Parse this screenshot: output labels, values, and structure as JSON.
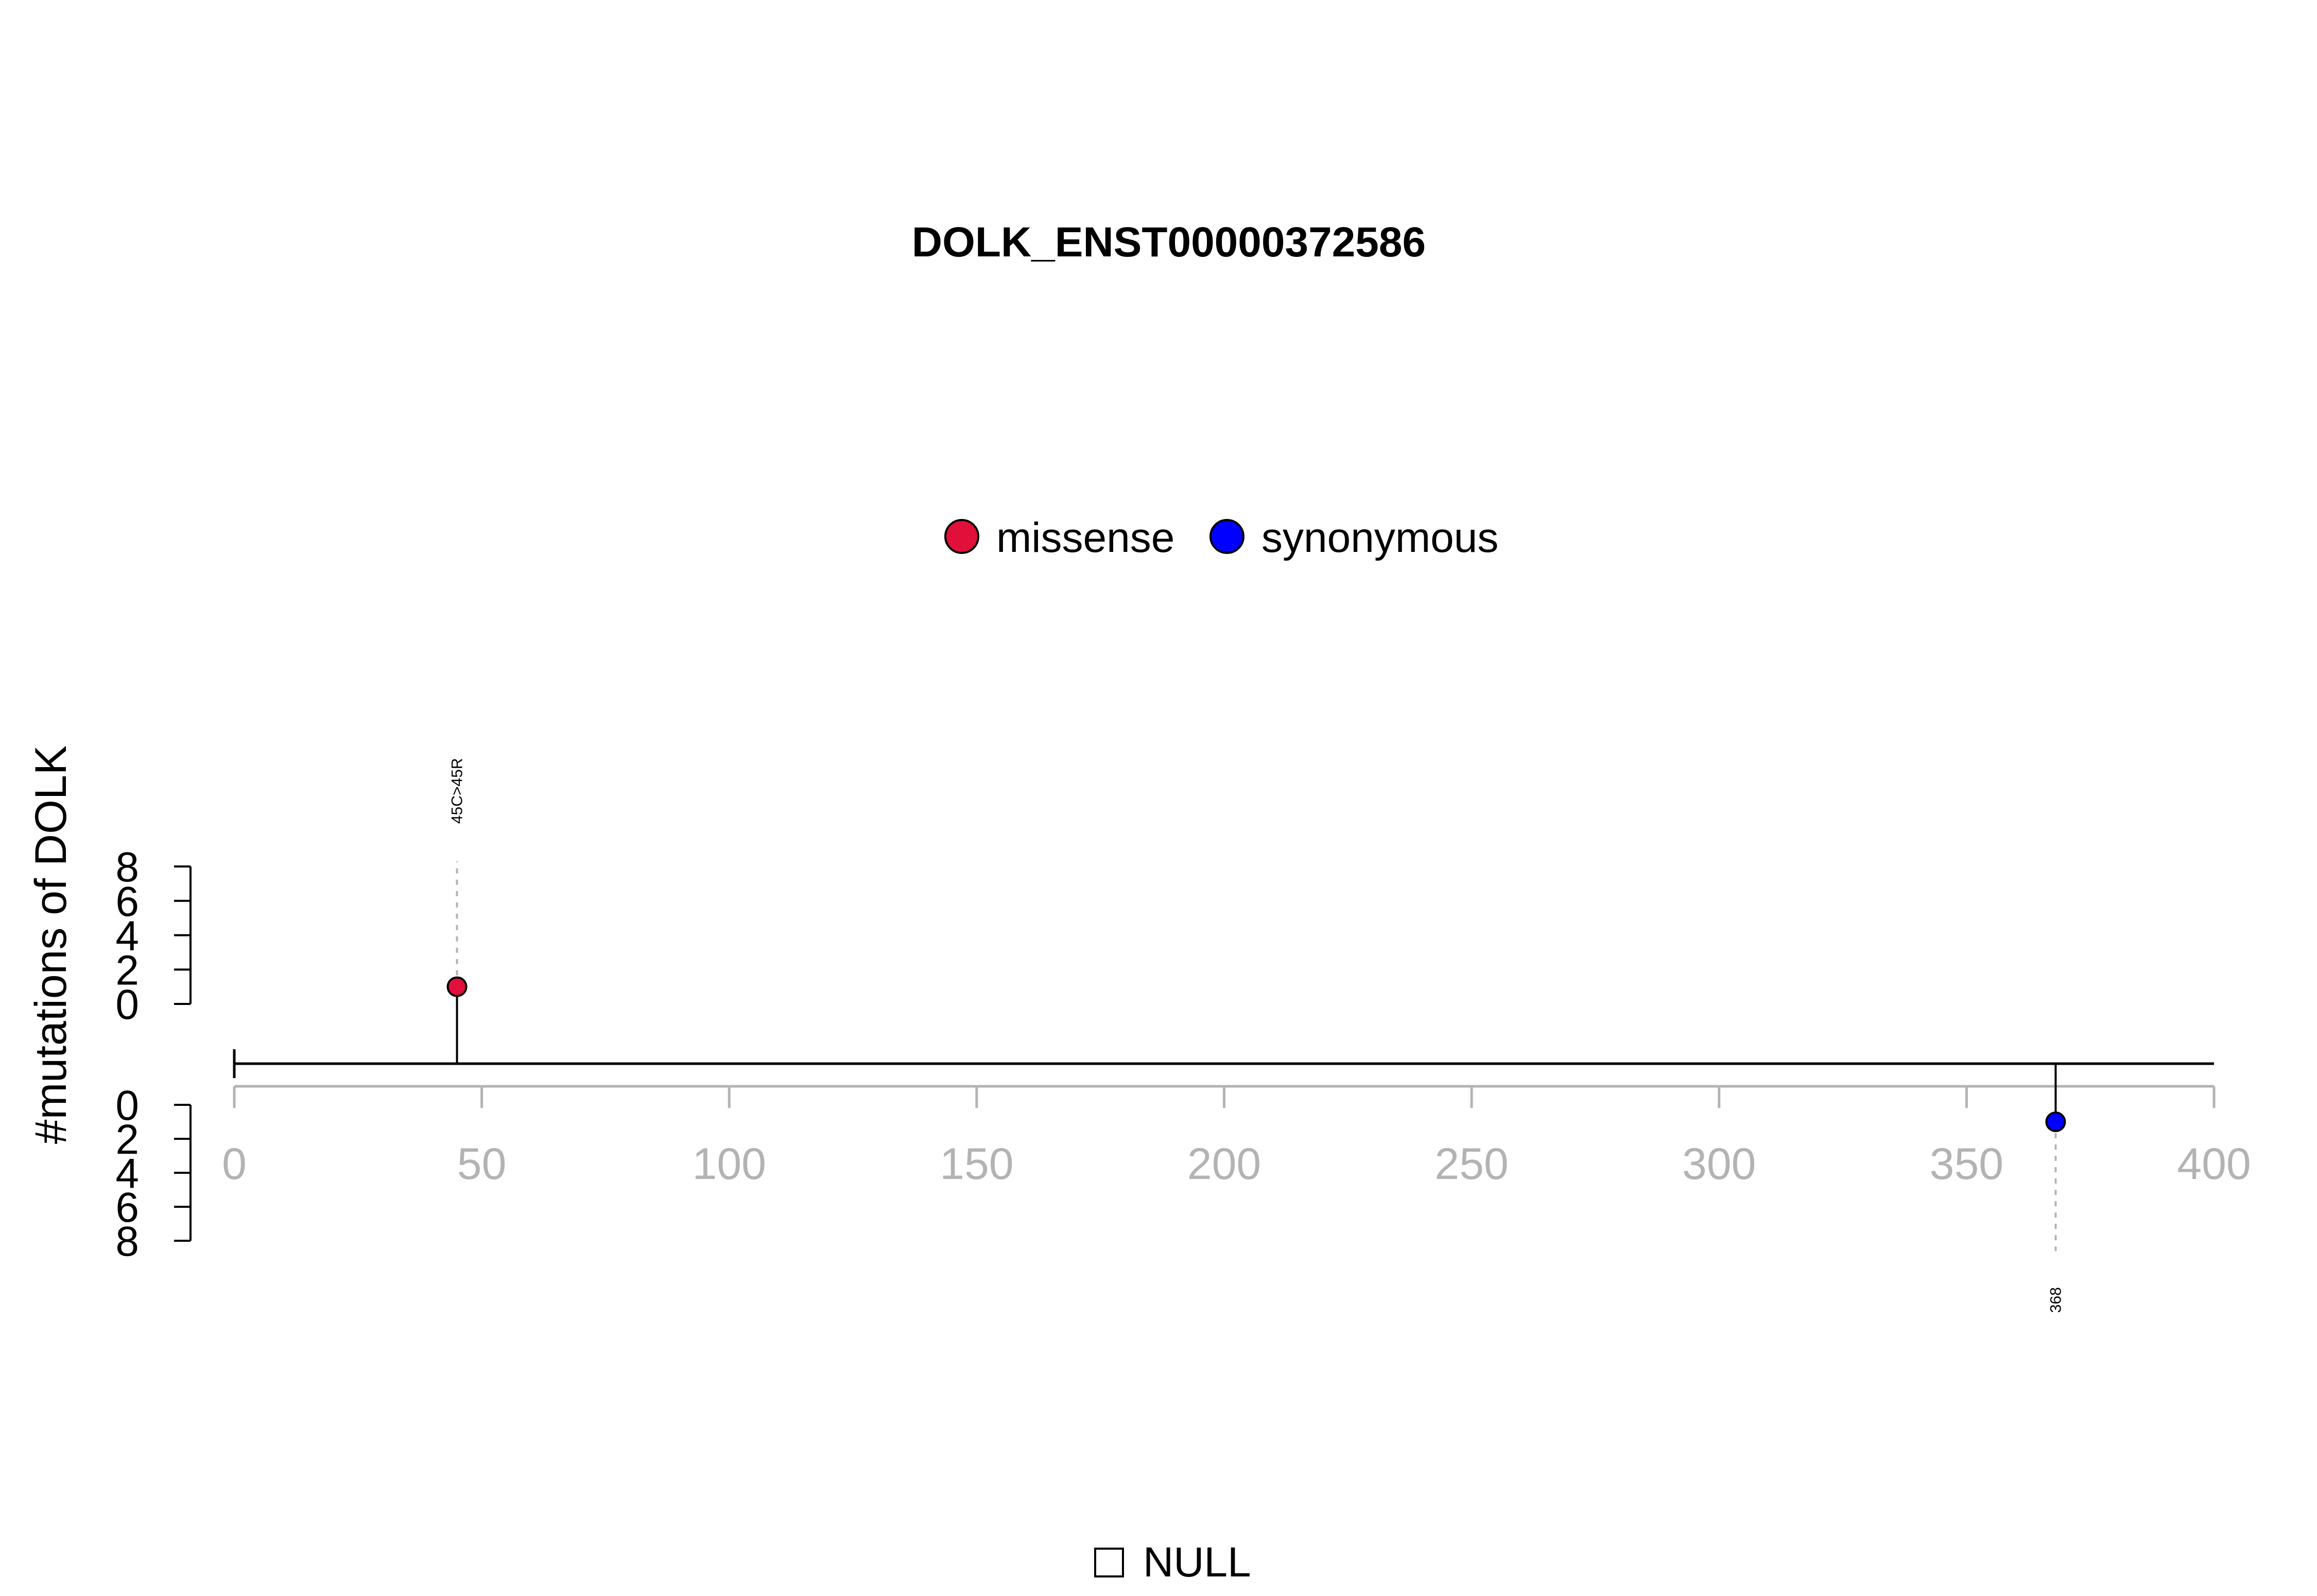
{
  "chart_data": {
    "type": "lollipop",
    "title": "DOLK_ENST00000372586",
    "ylabel": "#mutations of DOLK",
    "xlim": [
      0,
      400
    ],
    "xticks": [
      0,
      50,
      100,
      150,
      200,
      250,
      300,
      350,
      400
    ],
    "ylim_top": [
      0,
      8
    ],
    "ylim_bottom": [
      0,
      8
    ],
    "yticks": [
      0,
      2,
      4,
      6,
      8
    ],
    "legend": [
      {
        "label": "missense",
        "color": "#e0103a"
      },
      {
        "label": "synonymous",
        "color": "#0000ff"
      }
    ],
    "mutations": [
      {
        "position": 45,
        "count": 1,
        "label": "45C>45R",
        "type": "missense",
        "side": "top"
      },
      {
        "position": 368,
        "count": 1,
        "label": "368",
        "type": "synonymous",
        "side": "bottom"
      }
    ],
    "domain_legend": {
      "label": "NULL"
    }
  }
}
